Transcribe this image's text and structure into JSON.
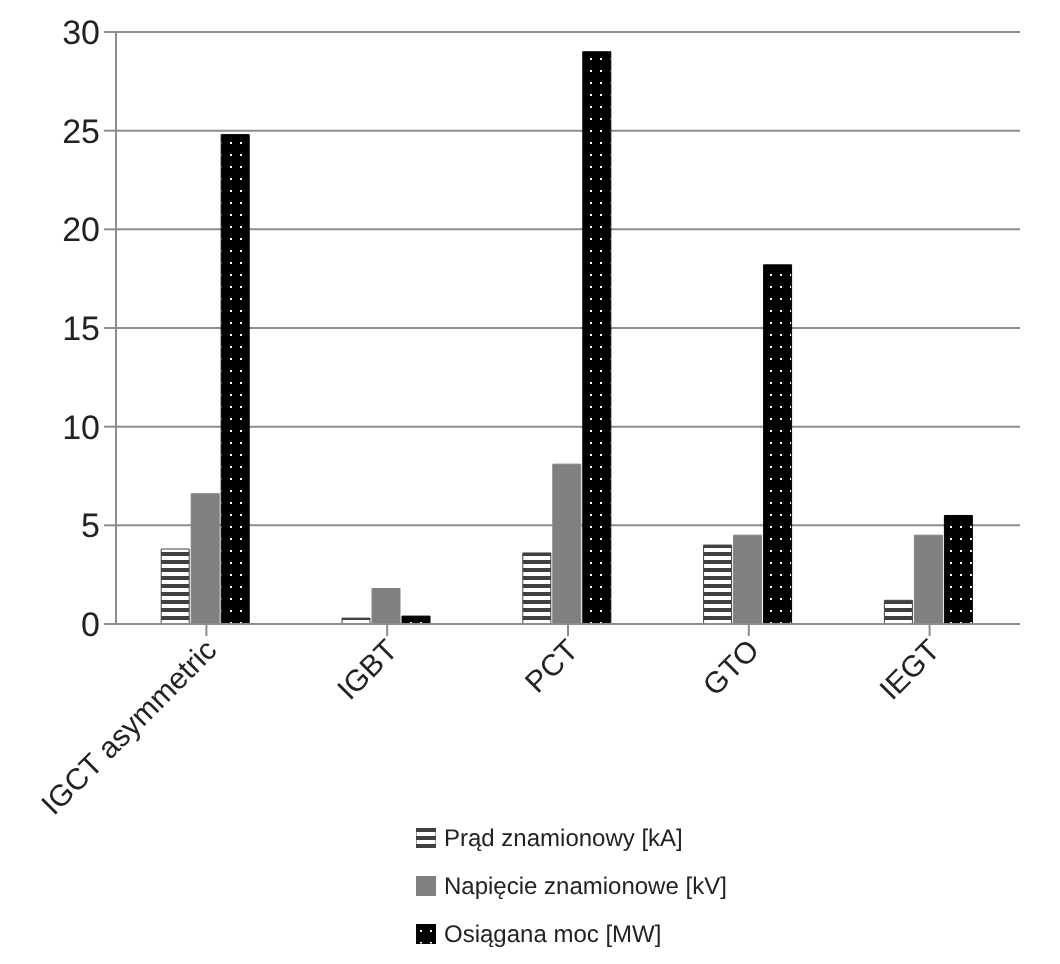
{
  "chart_data": {
    "type": "bar",
    "categories": [
      "IGCT asymmetric",
      "IGBT",
      "PCT",
      "GTO",
      "IEGT"
    ],
    "series": [
      {
        "name": "Prąd znamionowy [kA]",
        "color": "#404040",
        "values": [
          3.8,
          0.3,
          3.6,
          4.0,
          1.2
        ]
      },
      {
        "name": "Napięcie znamionowe [kV]",
        "color": "#808080",
        "values": [
          6.6,
          1.8,
          8.1,
          4.5,
          4.5
        ]
      },
      {
        "name": "Osiągana moc [MW]",
        "color": "#000000",
        "values": [
          24.8,
          0.4,
          29,
          18.2,
          5.5
        ]
      }
    ],
    "ylim": [
      0,
      30
    ],
    "yticks": [
      0,
      5,
      10,
      15,
      20,
      25,
      30
    ],
    "grid": "y",
    "legend": "bottom"
  }
}
